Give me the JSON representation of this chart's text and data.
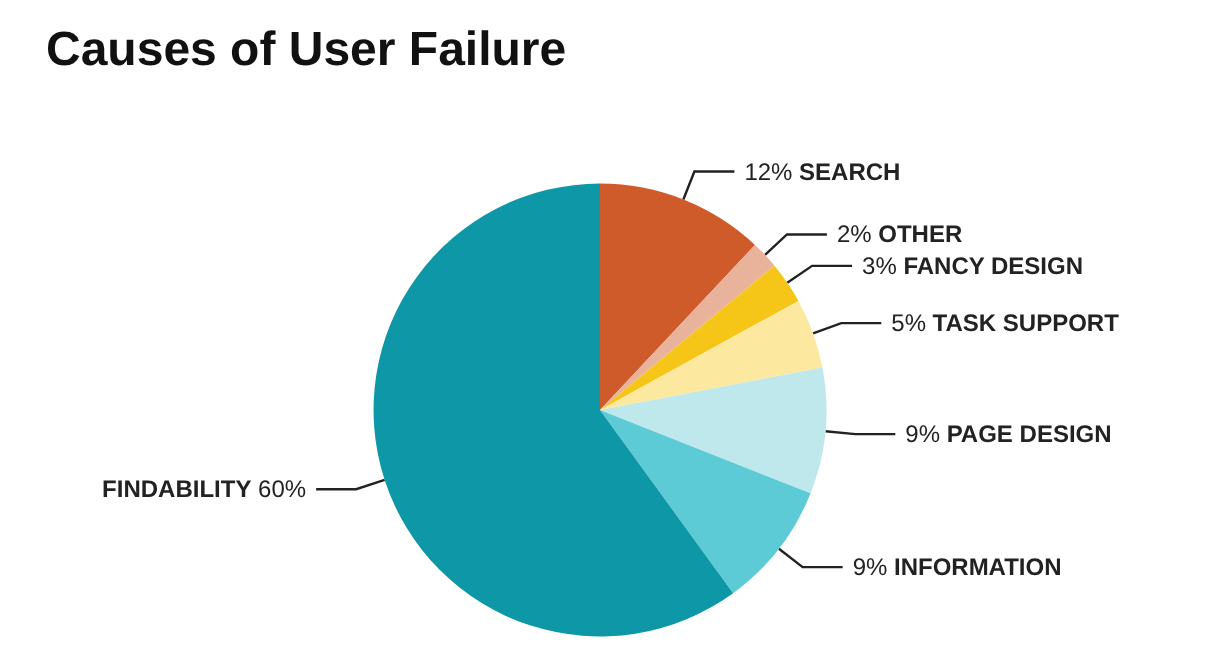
{
  "chart_data": {
    "type": "pie",
    "title": "Causes of User Failure",
    "categories": [
      "SEARCH",
      "OTHER",
      "FANCY DESIGN",
      "TASK SUPPORT",
      "PAGE DESIGN",
      "INFORMATION",
      "FINDABILITY"
    ],
    "values": [
      12,
      2,
      3,
      5,
      9,
      9,
      60
    ],
    "value_labels": [
      "12%",
      "2%",
      "3%",
      "5%",
      "9%",
      "9%",
      "60%"
    ],
    "colors": [
      "#cf5a2a",
      "#e9b29a",
      "#f5c518",
      "#fde8a0",
      "#bfe8ec",
      "#5ccbd6",
      "#0e97a6"
    ],
    "legend": false
  }
}
